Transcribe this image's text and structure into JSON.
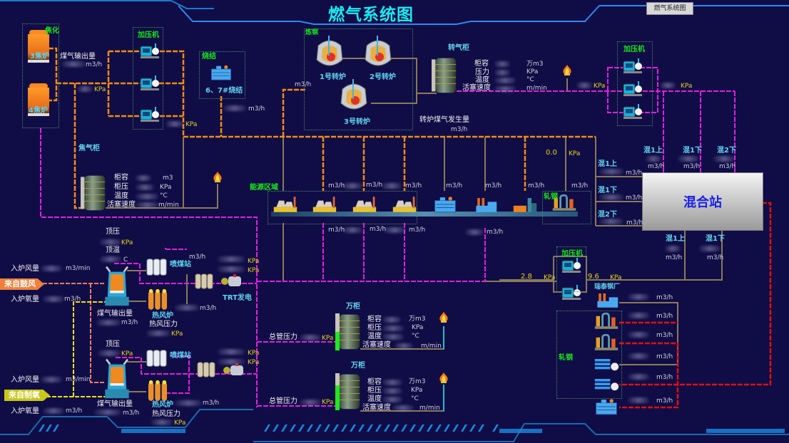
{
  "title": "燃气系统图",
  "nav_button": "燃气系统图",
  "units": {
    "m3h": "m3/h",
    "kpa": "KPa",
    "mmin": "m/min",
    "m3min": "m3/min",
    "m3": "m3",
    "wm3": "万m3",
    "degc": "°C",
    "c": "C"
  },
  "colors": {
    "coke_gas_pipe": "#f08c14",
    "converter_gas_pipe": "#e020e0",
    "mixed_gas_pipe": "#e01010",
    "plain_pipe": "#8a7a5a",
    "background": "#100c46"
  },
  "coking": {
    "label": "焦化",
    "oven3": "3焦炉",
    "oven4": "4焦炉",
    "gas_output_label": "煤气输出量",
    "booster_label": "加压机",
    "holder_label": "焦气柜",
    "holder_fields": [
      "柜容",
      "柜压",
      "温度",
      "活塞速度"
    ]
  },
  "sintering": {
    "label": "烧结",
    "name": "6、7#烧结"
  },
  "energy_area": {
    "label": "能源区域"
  },
  "steelmaking": {
    "label": "炼钢",
    "converters": [
      "1号转炉",
      "2号转炉",
      "3号转炉"
    ],
    "holder_label": "转气柜",
    "holder_fields": [
      "柜容",
      "压力",
      "温度",
      "活塞速度"
    ],
    "generation_label": "转炉煤气发生量"
  },
  "readouts": {
    "pressure_1": "0.0",
    "pressure_2": "2.8",
    "pressure_3": "9.6"
  },
  "rolling": {
    "label": "轧钢",
    "label2": "轧钢",
    "ruitai": "瑞泰钢厂"
  },
  "booster_right": {
    "label": "加压机"
  },
  "booster_low": {
    "label": "加压机"
  },
  "mixing": {
    "station": "混合站",
    "top": [
      "混1上",
      "混1下",
      "混2下"
    ],
    "left": [
      "混1上",
      "混1下",
      "混2下"
    ],
    "bottom": [
      "混1上",
      "混1下"
    ]
  },
  "blast_furnace": {
    "top_pressure": "顶压",
    "top_temp": "顶温",
    "air_flow": "入炉风量",
    "oxygen_flow": "入炉氧量",
    "from_blower": "来自鼓风",
    "from_oxygen": "来自制氧",
    "coal_station": "喷煤站",
    "trt": "TRT发电",
    "gas_output": "煤气输出量",
    "hot_stove": "热风炉",
    "hot_air_pressure": "热风压力"
  },
  "holders_10k": {
    "label": "万柜",
    "main_pressure": "总管压力",
    "fields": [
      "柜容",
      "柜压",
      "温度",
      "活塞速度"
    ],
    "levels": [
      0.5,
      0.68
    ]
  }
}
